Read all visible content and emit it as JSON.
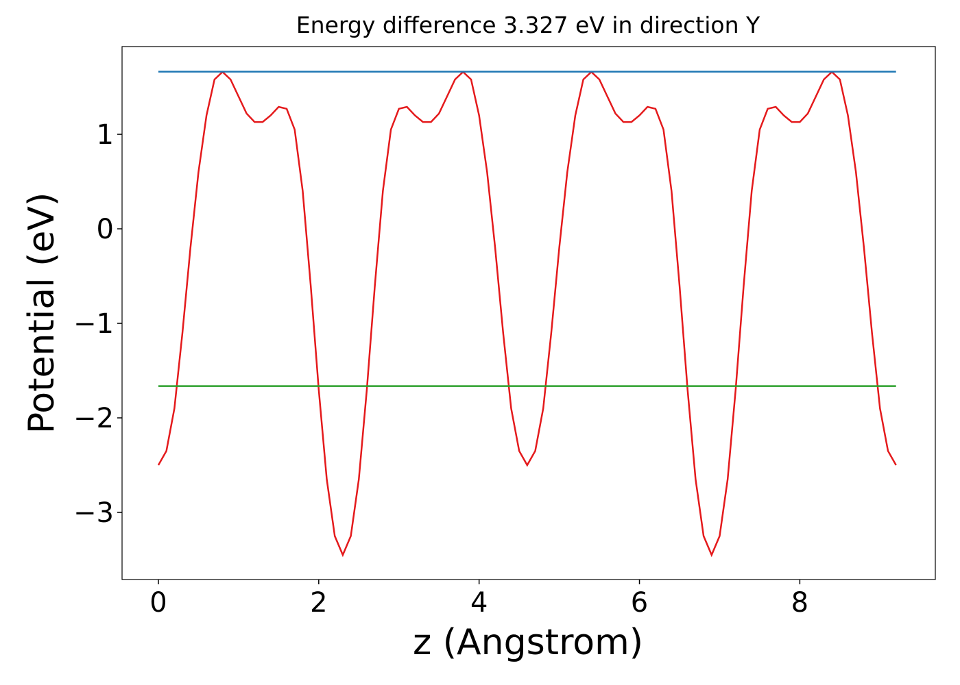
{
  "chart_data": {
    "type": "line",
    "title": "Energy difference 3.327 eV in direction Y",
    "x_label": "z (Angstrom)",
    "y_label": "Potential (eV)",
    "xlim": [
      -0.453,
      9.69
    ],
    "ylim": [
      -3.71,
      1.928
    ],
    "xticks": [
      0,
      2,
      4,
      6,
      8
    ],
    "yticks": [
      {
        "value": -3,
        "label": "−3"
      },
      {
        "value": -2,
        "label": "−2"
      },
      {
        "value": -1,
        "label": "−1"
      },
      0,
      1
    ],
    "series": [
      {
        "color": "#e41a1c",
        "x": [
          0,
          0.1,
          0.2,
          0.3,
          0.4,
          0.5,
          0.6,
          0.7,
          0.8,
          0.9,
          1.0,
          1.1,
          1.2,
          1.3,
          1.4,
          1.5,
          1.6,
          1.7,
          1.8,
          1.9,
          2.0,
          2.1,
          2.2,
          2.3,
          2.4,
          2.5,
          2.6,
          2.7,
          2.8,
          2.9,
          3.0,
          3.1,
          3.2,
          3.3,
          3.4,
          3.5,
          3.6,
          3.7,
          3.8,
          3.9,
          4.0,
          4.1,
          4.2,
          4.3,
          4.4,
          4.5,
          4.6,
          4.7,
          4.8,
          4.9,
          5.0,
          5.1,
          5.2,
          5.3,
          5.4,
          5.5,
          5.6,
          5.7,
          5.8,
          5.9,
          6.0,
          6.1,
          6.2,
          6.3,
          6.4,
          6.5,
          6.6,
          6.7,
          6.8,
          6.9,
          7.0,
          7.1,
          7.2,
          7.3,
          7.4,
          7.5,
          7.6,
          7.7,
          7.8,
          7.9,
          8.0,
          8.1,
          8.2,
          8.3,
          8.4,
          8.5,
          8.6,
          8.7,
          8.8,
          8.9,
          9.0,
          9.1,
          9.2
        ],
        "values": [
          -2.5,
          -2.35,
          -1.9,
          -1.1,
          -0.2,
          0.6,
          1.2,
          1.58,
          1.66,
          1.58,
          1.4,
          1.22,
          1.13,
          1.13,
          1.2,
          1.29,
          1.27,
          1.05,
          0.4,
          -0.6,
          -1.7,
          -2.65,
          -3.25,
          -3.45,
          -3.25,
          -2.65,
          -1.7,
          -0.6,
          0.4,
          1.05,
          1.27,
          1.29,
          1.2,
          1.13,
          1.13,
          1.22,
          1.4,
          1.58,
          1.66,
          1.58,
          1.2,
          0.6,
          -0.2,
          -1.1,
          -1.9,
          -2.35,
          -2.5,
          -2.35,
          -1.9,
          -1.1,
          -0.2,
          0.6,
          1.2,
          1.58,
          1.66,
          1.58,
          1.4,
          1.22,
          1.13,
          1.13,
          1.2,
          1.29,
          1.27,
          1.05,
          0.4,
          -0.6,
          -1.7,
          -2.65,
          -3.25,
          -3.45,
          -3.25,
          -2.65,
          -1.7,
          -0.6,
          0.4,
          1.05,
          1.27,
          1.29,
          1.2,
          1.13,
          1.13,
          1.22,
          1.4,
          1.58,
          1.66,
          1.58,
          1.2,
          0.6,
          -0.2,
          -1.1,
          -1.9,
          -2.35,
          -2.5
        ]
      },
      {
        "color": "#1f77b4",
        "x": [
          0,
          9.2
        ],
        "values": [
          1.663,
          1.663
        ]
      },
      {
        "color": "#2ca02c",
        "x": [
          0,
          9.2
        ],
        "values": [
          -1.664,
          -1.664
        ]
      }
    ]
  }
}
